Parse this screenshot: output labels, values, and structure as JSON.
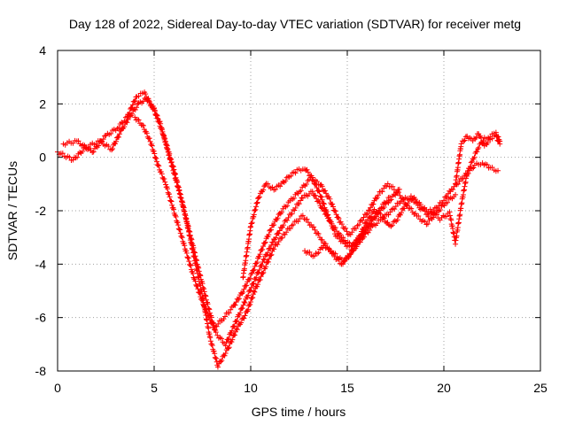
{
  "chart_data": {
    "type": "scatter",
    "title": "Day 128 of 2022, Sidereal Day-to-day VTEC variation (SDTVAR) for receiver metg",
    "xlabel": "GPS time / hours",
    "ylabel": "SDTVAR / TECUs",
    "xlim": [
      0,
      25
    ],
    "ylim": [
      -8,
      4
    ],
    "xticks": [
      "0",
      "5",
      "10",
      "15",
      "20",
      "25"
    ],
    "yticks": [
      "-8",
      "-6",
      "-4",
      "-2",
      "0",
      "2",
      "4"
    ],
    "xtick_values": [
      0,
      5,
      10,
      15,
      20,
      25
    ],
    "ytick_values": [
      -8,
      -6,
      -4,
      -2,
      0,
      2,
      4
    ],
    "grid": true,
    "marker": "+",
    "series": [
      {
        "name": "track-1",
        "color": "#ff0000",
        "x": [
          0.0,
          0.8,
          1.5,
          2.2,
          2.8,
          3.3,
          3.8,
          4.2,
          4.6,
          5.0,
          5.5,
          6.0,
          6.5,
          7.0,
          7.5,
          7.9,
          8.3,
          8.8,
          9.3,
          9.8,
          10.2,
          10.7,
          11.2,
          11.7,
          12.2,
          12.7,
          13.2,
          13.7,
          14.2,
          14.7,
          15.2,
          15.7,
          16.2,
          16.7,
          17.2
        ],
        "y": [
          0.2,
          -0.1,
          0.4,
          0.6,
          0.3,
          1.0,
          1.6,
          2.0,
          2.2,
          1.8,
          0.8,
          -0.4,
          -1.8,
          -3.5,
          -5.2,
          -6.8,
          -7.8,
          -7.2,
          -6.4,
          -5.8,
          -5.0,
          -4.2,
          -3.4,
          -2.9,
          -2.5,
          -2.2,
          -2.6,
          -3.1,
          -3.6,
          -4.0,
          -3.6,
          -3.0,
          -2.4,
          -1.9,
          -1.5
        ]
      },
      {
        "name": "track-2",
        "color": "#ff0000",
        "x": [
          0.3,
          1.0,
          1.8,
          2.5,
          3.1,
          3.6,
          4.1,
          4.5,
          4.9,
          5.3,
          5.8,
          6.3,
          6.8,
          7.3,
          7.8,
          8.2,
          8.7,
          9.2,
          9.7,
          10.2,
          10.7,
          11.2,
          11.7,
          12.2,
          12.7,
          13.2,
          13.7,
          14.2,
          14.7,
          15.2,
          15.7,
          16.2,
          16.7,
          17.2,
          17.7
        ],
        "y": [
          0.5,
          0.6,
          0.2,
          0.8,
          1.1,
          1.5,
          2.3,
          2.4,
          1.9,
          1.3,
          0.0,
          -1.3,
          -2.7,
          -4.2,
          -5.6,
          -6.6,
          -7.0,
          -6.2,
          -5.4,
          -4.6,
          -3.8,
          -3.1,
          -2.5,
          -2.0,
          -1.5,
          -1.3,
          -1.9,
          -2.5,
          -3.0,
          -3.3,
          -3.0,
          -2.5,
          -2.0,
          -1.6,
          -1.2
        ]
      },
      {
        "name": "track-3",
        "color": "#ff0000",
        "x": [
          4.0,
          4.4,
          4.8,
          5.2,
          5.6,
          6.1,
          6.6,
          7.1,
          7.6,
          8.1,
          8.6,
          9.1,
          9.6,
          10.1,
          10.6,
          11.1,
          11.6,
          12.1,
          12.6,
          13.1,
          13.6,
          14.1,
          14.6,
          15.1,
          15.6,
          16.1,
          16.6,
          17.1,
          17.6,
          18.1,
          18.6,
          19.1,
          19.6,
          20.1,
          20.6
        ],
        "y": [
          1.5,
          1.2,
          0.6,
          -0.3,
          -1.0,
          -2.2,
          -3.4,
          -4.6,
          -5.6,
          -6.4,
          -6.0,
          -5.6,
          -5.0,
          -4.3,
          -3.4,
          -2.6,
          -2.0,
          -1.6,
          -1.2,
          -0.8,
          -1.0,
          -1.6,
          -2.4,
          -2.9,
          -2.5,
          -2.0,
          -1.4,
          -1.0,
          -1.3,
          -1.8,
          -2.2,
          -2.5,
          -2.1,
          -1.7,
          -1.4
        ]
      },
      {
        "name": "track-4",
        "color": "#ff0000",
        "x": [
          9.6,
          10.0,
          10.4,
          10.8,
          11.2,
          11.6,
          12.0,
          12.4,
          12.8,
          13.2,
          13.6,
          14.0,
          14.4,
          14.8,
          15.2,
          15.6,
          16.0,
          16.4,
          16.8,
          17.2,
          17.6,
          18.0,
          18.4,
          18.8,
          19.2,
          19.6,
          20.0,
          20.4,
          20.8,
          21.2,
          21.6,
          22.0,
          22.4,
          22.8
        ],
        "y": [
          -4.5,
          -2.6,
          -1.5,
          -1.0,
          -1.2,
          -1.0,
          -0.7,
          -0.5,
          -0.4,
          -0.8,
          -1.4,
          -2.2,
          -2.9,
          -3.2,
          -3.4,
          -3.0,
          -2.4,
          -2.0,
          -2.2,
          -2.6,
          -2.3,
          -1.8,
          -1.5,
          -1.8,
          -2.2,
          -1.9,
          -1.6,
          -1.2,
          -0.9,
          -0.6,
          -0.3,
          -0.2,
          -0.4,
          -0.5
        ]
      },
      {
        "name": "track-5",
        "color": "#ff0000",
        "x": [
          12.8,
          13.3,
          13.8,
          14.3,
          14.8,
          15.3,
          15.8,
          16.3,
          16.8,
          17.3,
          17.8,
          18.3,
          18.8,
          19.3,
          19.8,
          20.3,
          20.6,
          20.9,
          21.2,
          21.5,
          21.8,
          22.1,
          22.4,
          22.7,
          22.9
        ],
        "y": [
          -3.5,
          -3.7,
          -3.3,
          -3.6,
          -3.9,
          -3.5,
          -3.0,
          -2.6,
          -2.3,
          -2.0,
          -1.6,
          -1.5,
          -1.9,
          -2.0,
          -2.3,
          -2.1,
          -3.2,
          -1.8,
          -0.6,
          -0.1,
          0.4,
          0.7,
          0.8,
          0.9,
          0.6
        ]
      },
      {
        "name": "track-6",
        "color": "#ff0000",
        "x": [
          20.6,
          20.9,
          21.2,
          21.5,
          21.8,
          22.1,
          22.4,
          22.7,
          22.9
        ],
        "y": [
          -1.0,
          0.5,
          0.8,
          0.6,
          0.9,
          0.4,
          0.7,
          0.8,
          0.5
        ]
      }
    ]
  }
}
